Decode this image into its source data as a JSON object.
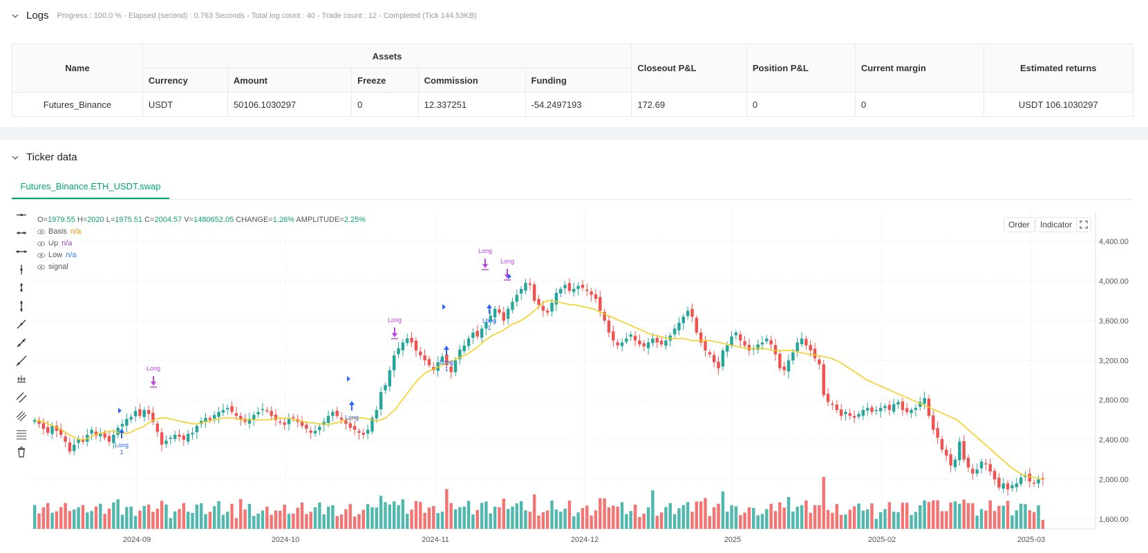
{
  "logs": {
    "title": "Logs",
    "summary": "Progress : 100.0 % - Elapsed (second) : 0.763  Seconds - Total log count : 40 - Trade count : 12 - Completed (Tick 144.53KB)"
  },
  "assets_table": {
    "col_name": "Name",
    "col_assets": "Assets",
    "col_currency": "Currency",
    "col_amount": "Amount",
    "col_freeze": "Freeze",
    "col_commission": "Commission",
    "col_funding": "Funding",
    "col_closeout": "Closeout P&L",
    "col_position": "Position P&L",
    "col_margin": "Current margin",
    "col_returns": "Estimated returns",
    "row": {
      "name": "Futures_Binance",
      "currency": "USDT",
      "amount": "50106.1030297",
      "freeze": "0",
      "commission": "12.337251",
      "funding": "-54.2497193",
      "closeout": "172.69",
      "position": "0",
      "margin": "0",
      "returns": "USDT 106.1030297"
    }
  },
  "ticker": {
    "title": "Ticker data",
    "tab": "Futures_Binance.ETH_USDT.swap"
  },
  "ohlc": {
    "o_label": "O=",
    "o": "1979.55",
    "h_label": "H=",
    "h": "2020",
    "l_label": "L=",
    "l": "1975.51",
    "c_label": "C=",
    "c": "2004.57",
    "v_label": "V=",
    "v": "1480652.05",
    "chg_label": "CHANGE=",
    "chg": "1.26%",
    "amp_label": "AMPLITUDE=",
    "amp": "2.25%"
  },
  "legend": [
    {
      "name": "Basis",
      "value": "n/a",
      "color": "#f08c00"
    },
    {
      "name": "Up",
      "value": "n/a",
      "color": "#8e44ad"
    },
    {
      "name": "Low",
      "value": "n/a",
      "color": "#2f80ed"
    },
    {
      "name": "signal",
      "value": "",
      "color": "#555555"
    }
  ],
  "buttons": {
    "order": "Order",
    "indicator": "Indicator"
  },
  "colors": {
    "up": "#26a69a",
    "down": "#ef5350",
    "basis": "#f5d020",
    "long_marker": "#2962ff",
    "close_marker": "#c040e0",
    "accent": "#00a870"
  },
  "chart_data": {
    "type": "candlestick",
    "x_ticks": [
      "2024-09",
      "2024-10",
      "2024-11",
      "2024-12",
      "2025",
      "2025-02",
      "2025-03"
    ],
    "y_ticks": [
      "4,400.00",
      "4,000.00",
      "3,600.00",
      "3,200.00",
      "2,800.00",
      "2,400.00",
      "2,000.00",
      "1,600.00"
    ],
    "ylim": [
      1550,
      4500
    ],
    "series_close": [
      2600,
      2560,
      2510,
      2470,
      2540,
      2490,
      2450,
      2380,
      2280,
      2350,
      2410,
      2380,
      2450,
      2500,
      2440,
      2460,
      2420,
      2380,
      2450,
      2520,
      2560,
      2610,
      2630,
      2690,
      2640,
      2700,
      2660,
      2580,
      2480,
      2350,
      2390,
      2420,
      2450,
      2430,
      2400,
      2460,
      2470,
      2540,
      2590,
      2620,
      2600,
      2650,
      2680,
      2700,
      2720,
      2680,
      2640,
      2600,
      2580,
      2610,
      2650,
      2680,
      2710,
      2690,
      2640,
      2600,
      2580,
      2550,
      2610,
      2620,
      2580,
      2540,
      2510,
      2470,
      2490,
      2530,
      2580,
      2640,
      2680,
      2640,
      2600,
      2560,
      2520,
      2500,
      2470,
      2450,
      2500,
      2620,
      2700,
      2880,
      2950,
      3100,
      3250,
      3320,
      3380,
      3420,
      3380,
      3300,
      3250,
      3200,
      3150,
      3100,
      3180,
      3240,
      3150,
      3080,
      3200,
      3310,
      3350,
      3420,
      3480,
      3440,
      3520,
      3580,
      3650,
      3720,
      3680,
      3600,
      3720,
      3790,
      3860,
      3920,
      3980,
      3960,
      3800,
      3760,
      3700,
      3680,
      3780,
      3880,
      3920,
      3960,
      3900,
      3920,
      3950,
      3930,
      3900,
      3860,
      3820,
      3700,
      3600,
      3480,
      3400,
      3350,
      3380,
      3420,
      3460,
      3400,
      3360,
      3340,
      3380,
      3420,
      3380,
      3360,
      3400,
      3450,
      3520,
      3580,
      3640,
      3700,
      3640,
      3480,
      3380,
      3300,
      3260,
      3180,
      3120,
      3300,
      3350,
      3440,
      3480,
      3400,
      3350,
      3300,
      3320,
      3360,
      3380,
      3420,
      3360,
      3260,
      3120,
      3100,
      3200,
      3280,
      3380,
      3420,
      3350,
      3300,
      3220,
      3160,
      2850,
      2780,
      2760,
      2700,
      2640,
      2680,
      2640,
      2620,
      2660,
      2700,
      2720,
      2680,
      2700,
      2720,
      2740,
      2700,
      2760,
      2780,
      2700,
      2680,
      2700,
      2720,
      2780,
      2820,
      2640,
      2500,
      2420,
      2300,
      2240,
      2140,
      2200,
      2380,
      2200,
      2120,
      2060,
      2100,
      2180,
      2160,
      2080,
      2000,
      1920,
      1960,
      1900,
      1940,
      1960,
      2020,
      2040,
      1980,
      1960,
      2000,
      2005
    ],
    "basis": [
      2600,
      2590,
      2580,
      2560,
      2540,
      2520,
      2500,
      2470,
      2440,
      2420,
      2400,
      2400,
      2420,
      2440,
      2460,
      2470,
      2480,
      2490,
      2480,
      2470,
      2460,
      2470,
      2490,
      2510,
      2530,
      2560,
      2590,
      2610,
      2620,
      2620,
      2610,
      2600,
      2590,
      2580,
      2570,
      2560,
      2560,
      2570,
      2580,
      2590,
      2600,
      2610,
      2620,
      2620,
      2620,
      2610,
      2600,
      2600,
      2600,
      2600,
      2600,
      2600,
      2600,
      2610,
      2620,
      2620,
      2620,
      2610,
      2600,
      2590,
      2580,
      2570,
      2570,
      2560,
      2560,
      2550,
      2560,
      2570,
      2580,
      2600,
      2610,
      2620,
      2620,
      2620,
      2610,
      2600,
      2590,
      2600,
      2620,
      2660,
      2700,
      2760,
      2820,
      2880,
      2940,
      3000,
      3040,
      3080,
      3100,
      3120,
      3140,
      3160,
      3180,
      3200,
      3220,
      3240,
      3260,
      3290,
      3320,
      3360,
      3400,
      3430,
      3460,
      3480,
      3500,
      3530,
      3560,
      3580,
      3600,
      3630,
      3660,
      3700,
      3740,
      3780,
      3800,
      3800,
      3790,
      3780,
      3770,
      3760,
      3760,
      3750,
      3740,
      3730,
      3720,
      3700,
      3680,
      3660,
      3640,
      3620,
      3600,
      3580,
      3560,
      3540,
      3520,
      3500,
      3480,
      3460,
      3450,
      3440,
      3430,
      3420,
      3420,
      3420,
      3420,
      3410,
      3400,
      3400,
      3400,
      3400,
      3400,
      3390,
      3380,
      3370,
      3360,
      3350,
      3340,
      3330,
      3320,
      3320,
      3320,
      3320,
      3320,
      3310,
      3300,
      3300,
      3300,
      3300,
      3300,
      3290,
      3280,
      3270,
      3260,
      3260,
      3250,
      3240,
      3230,
      3220,
      3200,
      3180,
      3150,
      3120,
      3090,
      3060,
      3030,
      3000,
      2980,
      2960,
      2940,
      2920,
      2900,
      2880,
      2860,
      2840,
      2820,
      2800,
      2780,
      2760,
      2740,
      2720,
      2700,
      2680,
      2660,
      2640,
      2620,
      2600,
      2560,
      2520,
      2480,
      2440,
      2400,
      2360,
      2320,
      2280,
      2240,
      2200,
      2160,
      2120,
      2090,
      2060,
      2040,
      2030,
      2020,
      2010,
      2000
    ],
    "long_markers": [
      "Long 1",
      "Long",
      "Long",
      "Long 1",
      "Long 1",
      "Long",
      "Long"
    ]
  }
}
